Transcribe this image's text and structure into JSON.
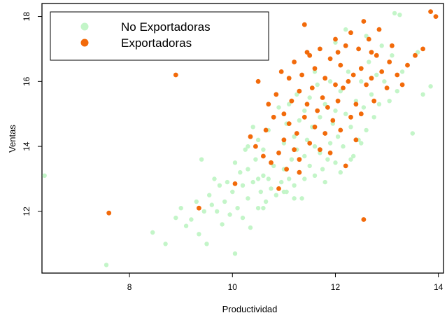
{
  "chart_data": {
    "type": "scatter",
    "title": "",
    "xlabel": "Productividad",
    "ylabel": "Ventas",
    "xlim": [
      6.3,
      14.1
    ],
    "ylim": [
      10.1,
      18.4
    ],
    "x_ticks": [
      8,
      10,
      12,
      14
    ],
    "y_ticks": [
      12,
      14,
      16,
      18
    ],
    "x_tick_labels": [
      "8",
      "10",
      "12",
      "14"
    ],
    "y_tick_labels": [
      "12",
      "14",
      "16",
      "18"
    ],
    "grid": false,
    "legend_position": "top-left",
    "series": [
      {
        "name": "No Exportadoras",
        "color": "#c3f5c8",
        "points": [
          [
            6.35,
            13.1
          ],
          [
            7.55,
            10.35
          ],
          [
            8.45,
            11.35
          ],
          [
            8.7,
            11.0
          ],
          [
            8.9,
            11.8
          ],
          [
            9.0,
            12.1
          ],
          [
            9.1,
            11.55
          ],
          [
            9.2,
            11.75
          ],
          [
            9.3,
            12.3
          ],
          [
            9.35,
            11.3
          ],
          [
            9.4,
            13.6
          ],
          [
            9.45,
            12.0
          ],
          [
            9.5,
            11.0
          ],
          [
            9.55,
            12.5
          ],
          [
            9.6,
            12.2
          ],
          [
            9.65,
            13.0
          ],
          [
            9.7,
            12.0
          ],
          [
            9.75,
            12.8
          ],
          [
            9.8,
            11.6
          ],
          [
            9.85,
            12.3
          ],
          [
            9.9,
            12.9
          ],
          [
            9.95,
            11.9
          ],
          [
            10.0,
            12.6
          ],
          [
            10.05,
            10.7
          ],
          [
            10.05,
            13.5
          ],
          [
            10.1,
            12.1
          ],
          [
            10.15,
            13.2
          ],
          [
            10.2,
            11.8
          ],
          [
            10.2,
            12.8
          ],
          [
            10.25,
            13.9
          ],
          [
            10.3,
            12.4
          ],
          [
            10.3,
            13.3
          ],
          [
            10.35,
            11.5
          ],
          [
            10.4,
            12.9
          ],
          [
            10.45,
            13.6
          ],
          [
            10.5,
            12.1
          ],
          [
            10.5,
            14.2
          ],
          [
            10.55,
            12.6
          ],
          [
            10.6,
            13.1
          ],
          [
            10.6,
            13.9
          ],
          [
            10.65,
            12.3
          ],
          [
            10.7,
            14.5
          ],
          [
            10.7,
            13.0
          ],
          [
            10.75,
            12.7
          ],
          [
            10.8,
            13.4
          ],
          [
            10.8,
            14.9
          ],
          [
            10.85,
            12.5
          ],
          [
            10.9,
            13.8
          ],
          [
            10.9,
            15.2
          ],
          [
            10.95,
            12.9
          ],
          [
            11.0,
            13.3
          ],
          [
            11.0,
            14.1
          ],
          [
            11.05,
            12.6
          ],
          [
            11.05,
            14.7
          ],
          [
            11.1,
            13.0
          ],
          [
            11.1,
            15.3
          ],
          [
            11.15,
            13.6
          ],
          [
            11.2,
            12.8
          ],
          [
            11.2,
            14.3
          ],
          [
            11.25,
            13.9
          ],
          [
            11.25,
            15.6
          ],
          [
            11.3,
            13.2
          ],
          [
            11.3,
            14.8
          ],
          [
            11.35,
            12.4
          ],
          [
            11.4,
            13.7
          ],
          [
            11.4,
            15.1
          ],
          [
            11.45,
            14.2
          ],
          [
            11.5,
            13.4
          ],
          [
            11.5,
            15.5
          ],
          [
            11.55,
            14.6
          ],
          [
            11.6,
            13.1
          ],
          [
            11.6,
            14.0
          ],
          [
            11.65,
            15.9
          ],
          [
            11.7,
            13.8
          ],
          [
            11.7,
            14.9
          ],
          [
            11.75,
            13.3
          ],
          [
            11.8,
            14.4
          ],
          [
            11.8,
            15.3
          ],
          [
            11.85,
            13.6
          ],
          [
            11.9,
            14.1
          ],
          [
            11.9,
            16.0
          ],
          [
            11.95,
            14.7
          ],
          [
            12.0,
            13.5
          ],
          [
            12.0,
            15.1
          ],
          [
            12.05,
            14.3
          ],
          [
            12.1,
            15.7
          ],
          [
            12.15,
            14.0
          ],
          [
            12.2,
            15.0
          ],
          [
            12.25,
            16.3
          ],
          [
            12.3,
            14.6
          ],
          [
            12.35,
            13.7
          ],
          [
            12.4,
            15.4
          ],
          [
            12.45,
            14.2
          ],
          [
            12.5,
            16.0
          ],
          [
            12.55,
            15.2
          ],
          [
            12.6,
            14.5
          ],
          [
            12.65,
            16.6
          ],
          [
            12.7,
            15.6
          ],
          [
            12.75,
            14.9
          ],
          [
            12.8,
            16.2
          ],
          [
            12.85,
            15.3
          ],
          [
            12.9,
            17.1
          ],
          [
            12.95,
            16.0
          ],
          [
            13.05,
            15.4
          ],
          [
            13.1,
            16.8
          ],
          [
            13.2,
            15.7
          ],
          [
            13.3,
            16.3
          ],
          [
            13.15,
            18.1
          ],
          [
            13.25,
            18.05
          ],
          [
            13.5,
            14.4
          ],
          [
            13.6,
            16.9
          ],
          [
            13.7,
            15.6
          ],
          [
            13.85,
            15.85
          ],
          [
            12.0,
            17.2
          ],
          [
            12.2,
            17.6
          ],
          [
            12.6,
            17.4
          ],
          [
            12.3,
            13.6
          ],
          [
            12.5,
            14.1
          ],
          [
            11.0,
            12.6
          ],
          [
            10.6,
            12.1
          ],
          [
            10.5,
            13.0
          ],
          [
            11.2,
            12.4
          ],
          [
            11.4,
            13.0
          ],
          [
            10.4,
            14.6
          ],
          [
            10.3,
            14.0
          ],
          [
            11.6,
            16.3
          ],
          [
            11.8,
            12.9
          ],
          [
            12.1,
            13.2
          ]
        ]
      },
      {
        "name": "Exportadoras",
        "color": "#f26a0a",
        "points": [
          [
            7.6,
            11.95
          ],
          [
            8.9,
            16.2
          ],
          [
            9.35,
            12.1
          ],
          [
            10.05,
            12.85
          ],
          [
            10.35,
            14.3
          ],
          [
            10.45,
            14.0
          ],
          [
            10.5,
            16.0
          ],
          [
            10.6,
            13.7
          ],
          [
            10.65,
            14.5
          ],
          [
            10.7,
            15.3
          ],
          [
            10.75,
            13.5
          ],
          [
            10.8,
            14.9
          ],
          [
            10.85,
            15.6
          ],
          [
            10.9,
            13.8
          ],
          [
            10.95,
            16.3
          ],
          [
            11.0,
            14.2
          ],
          [
            11.0,
            15.0
          ],
          [
            11.05,
            13.3
          ],
          [
            11.1,
            14.7
          ],
          [
            11.1,
            16.1
          ],
          [
            11.15,
            15.4
          ],
          [
            11.2,
            13.9
          ],
          [
            11.2,
            16.6
          ],
          [
            11.25,
            14.4
          ],
          [
            11.3,
            15.7
          ],
          [
            11.3,
            13.6
          ],
          [
            11.35,
            16.2
          ],
          [
            11.4,
            14.9
          ],
          [
            11.4,
            17.75
          ],
          [
            11.45,
            15.3
          ],
          [
            11.5,
            14.1
          ],
          [
            11.5,
            16.8
          ],
          [
            11.55,
            15.8
          ],
          [
            11.6,
            14.6
          ],
          [
            11.6,
            16.4
          ],
          [
            11.65,
            15.1
          ],
          [
            11.7,
            13.9
          ],
          [
            11.7,
            17.0
          ],
          [
            11.75,
            15.5
          ],
          [
            11.8,
            14.4
          ],
          [
            11.8,
            16.1
          ],
          [
            11.85,
            15.2
          ],
          [
            11.9,
            16.7
          ],
          [
            11.95,
            14.8
          ],
          [
            12.0,
            15.9
          ],
          [
            12.0,
            17.3
          ],
          [
            12.05,
            15.4
          ],
          [
            12.1,
            14.5
          ],
          [
            12.1,
            16.5
          ],
          [
            12.15,
            15.8
          ],
          [
            12.2,
            17.1
          ],
          [
            12.25,
            16.0
          ],
          [
            12.3,
            14.9
          ],
          [
            12.3,
            17.5
          ],
          [
            12.35,
            16.2
          ],
          [
            12.4,
            15.3
          ],
          [
            12.45,
            17.0
          ],
          [
            12.5,
            16.4
          ],
          [
            12.55,
            11.75
          ],
          [
            12.55,
            17.85
          ],
          [
            12.6,
            15.9
          ],
          [
            12.65,
            17.3
          ],
          [
            12.7,
            16.1
          ],
          [
            12.75,
            15.4
          ],
          [
            12.8,
            16.8
          ],
          [
            12.85,
            17.6
          ],
          [
            12.9,
            16.3
          ],
          [
            13.0,
            15.8
          ],
          [
            13.05,
            16.6
          ],
          [
            13.1,
            17.1
          ],
          [
            13.2,
            16.2
          ],
          [
            13.3,
            15.9
          ],
          [
            13.4,
            16.5
          ],
          [
            13.55,
            16.8
          ],
          [
            13.7,
            17.0
          ],
          [
            13.85,
            18.15
          ],
          [
            13.95,
            18.0
          ],
          [
            12.2,
            13.4
          ],
          [
            11.3,
            13.2
          ],
          [
            10.9,
            12.7
          ],
          [
            12.4,
            14.2
          ],
          [
            11.9,
            13.8
          ],
          [
            12.7,
            16.9
          ],
          [
            12.05,
            16.9
          ],
          [
            11.45,
            16.9
          ],
          [
            12.5,
            15.0
          ]
        ]
      }
    ]
  }
}
